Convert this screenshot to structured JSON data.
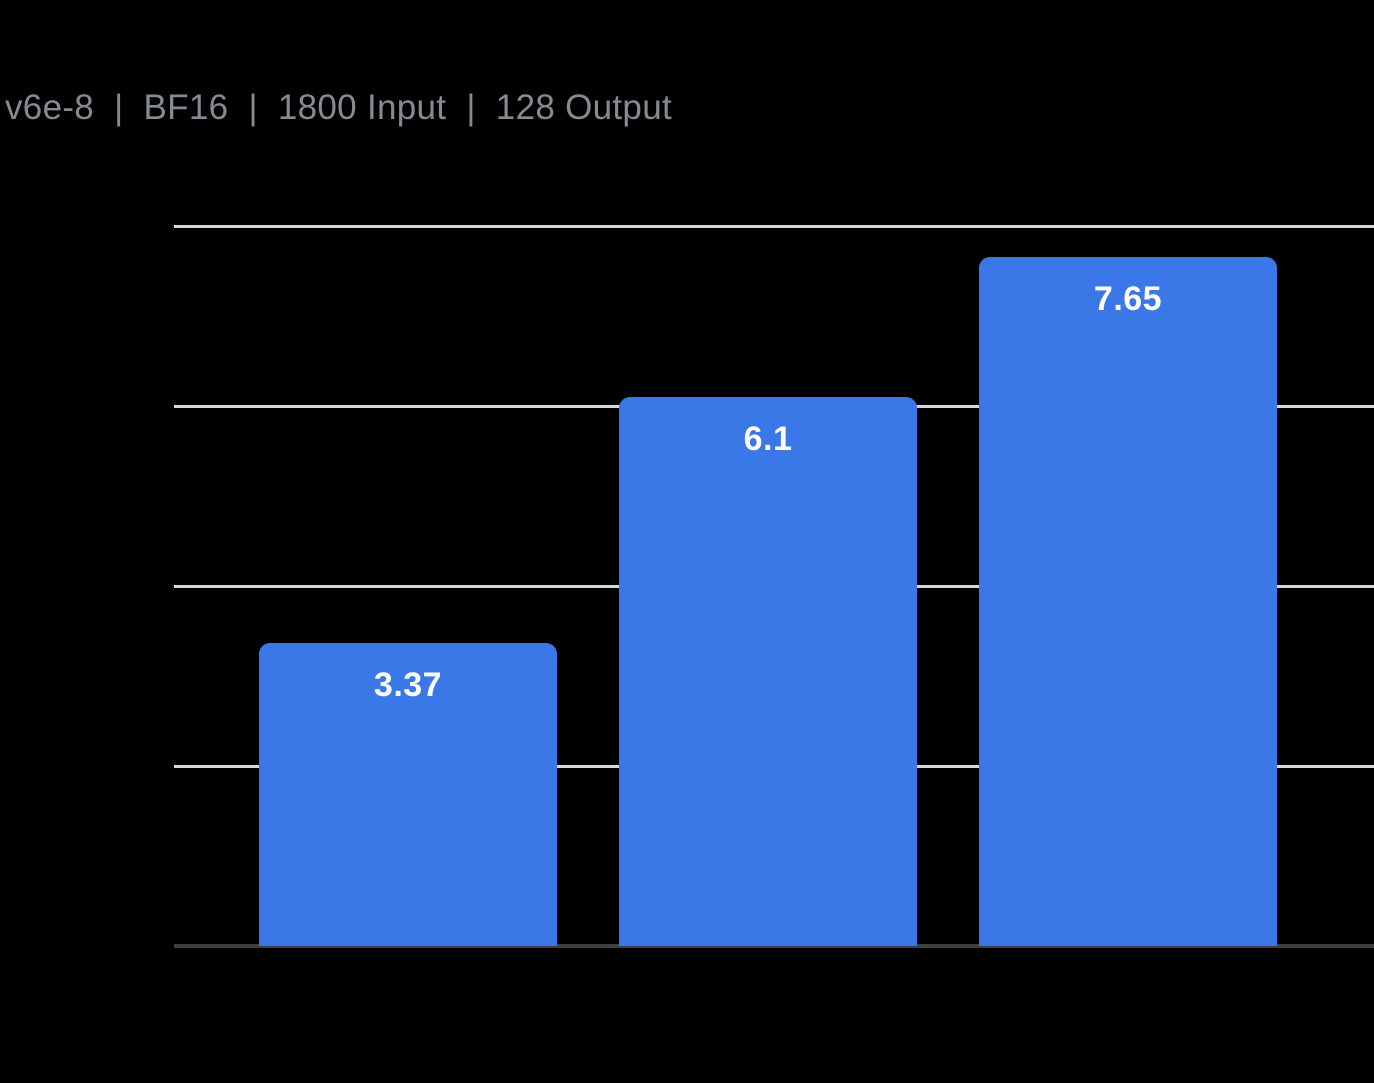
{
  "chart_data": {
    "type": "bar",
    "title": "v6e-8  |  BF16  |  1800 Input  |  128 Output",
    "values": [
      3.37,
      6.1,
      7.65
    ],
    "bar_labels": [
      "3.37",
      "6.1",
      "7.65"
    ],
    "xlabel": "",
    "ylabel": "",
    "ylim": [
      0,
      8
    ],
    "grid_step": 2,
    "grid": true,
    "axis_tick_labels_visible": false,
    "legend": "none",
    "bar_label_position": "inside-top",
    "colors": {
      "bar": "#3B78E7",
      "bar_label_text": "#FFFFFF",
      "title_text": "#858B92",
      "gridline": "#D5D8DD",
      "axis_line": "#3C4043",
      "background": "#000000"
    }
  }
}
